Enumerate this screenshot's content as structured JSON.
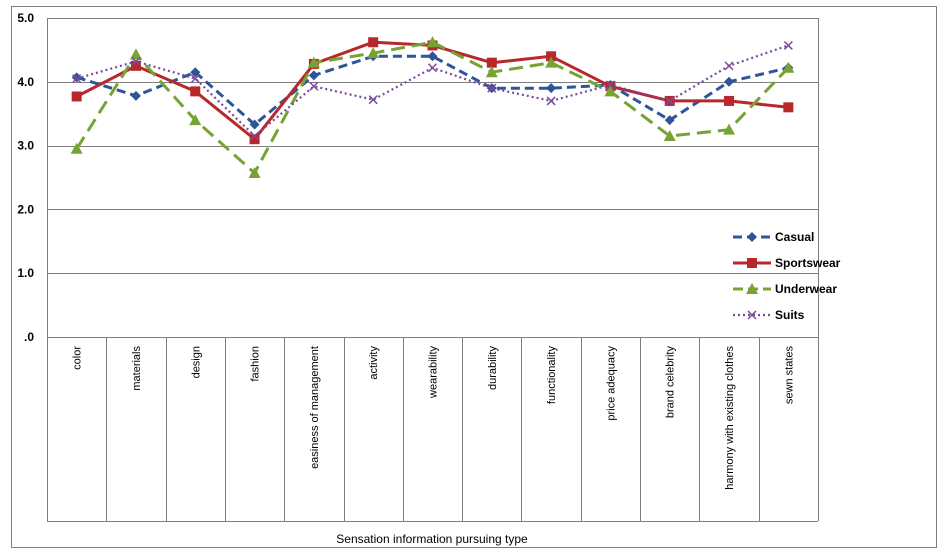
{
  "chart_data": {
    "type": "line",
    "title": "",
    "xlabel": "Sensation information pursuing type",
    "ylabel": "",
    "ylim": [
      0,
      5
    ],
    "yticks": [
      0,
      1,
      2,
      3,
      4,
      5
    ],
    "ytick_labels": [
      ".0",
      "1.0",
      "2.0",
      "3.0",
      "4.0",
      "5.0"
    ],
    "grid": true,
    "legend_position": "right",
    "categories": [
      "color",
      "materials",
      "design",
      "fashion",
      "easiness of management",
      "activity",
      "wearability",
      "durability",
      "functionality",
      "price adequacy",
      "brand celebrity",
      "harmony with existing clothes",
      "sewn states"
    ],
    "series": [
      {
        "name": "Casual",
        "color": "#2E5597",
        "marker": "diamond",
        "dash": "dashed",
        "values": [
          4.07,
          3.78,
          4.15,
          3.33,
          4.1,
          4.4,
          4.4,
          3.9,
          3.9,
          3.95,
          3.4,
          4.0,
          4.22
        ]
      },
      {
        "name": "Sportswear",
        "color": "#B7282A",
        "marker": "square",
        "dash": "solid",
        "values": [
          3.77,
          4.25,
          3.85,
          3.1,
          4.28,
          4.62,
          4.57,
          4.3,
          4.4,
          3.93,
          3.7,
          3.7,
          3.6
        ]
      },
      {
        "name": "Underwear",
        "color": "#77A234",
        "marker": "triangle",
        "dash": "longdash",
        "values": [
          2.95,
          4.43,
          3.4,
          2.57,
          4.3,
          4.45,
          4.62,
          4.15,
          4.3,
          3.85,
          3.15,
          3.25,
          4.22
        ]
      },
      {
        "name": "Suits",
        "color": "#7A4B9B",
        "marker": "x",
        "dash": "dotted",
        "values": [
          4.05,
          4.32,
          4.05,
          3.15,
          3.93,
          3.72,
          4.22,
          3.9,
          3.7,
          3.95,
          3.7,
          4.25,
          4.57
        ]
      }
    ]
  }
}
